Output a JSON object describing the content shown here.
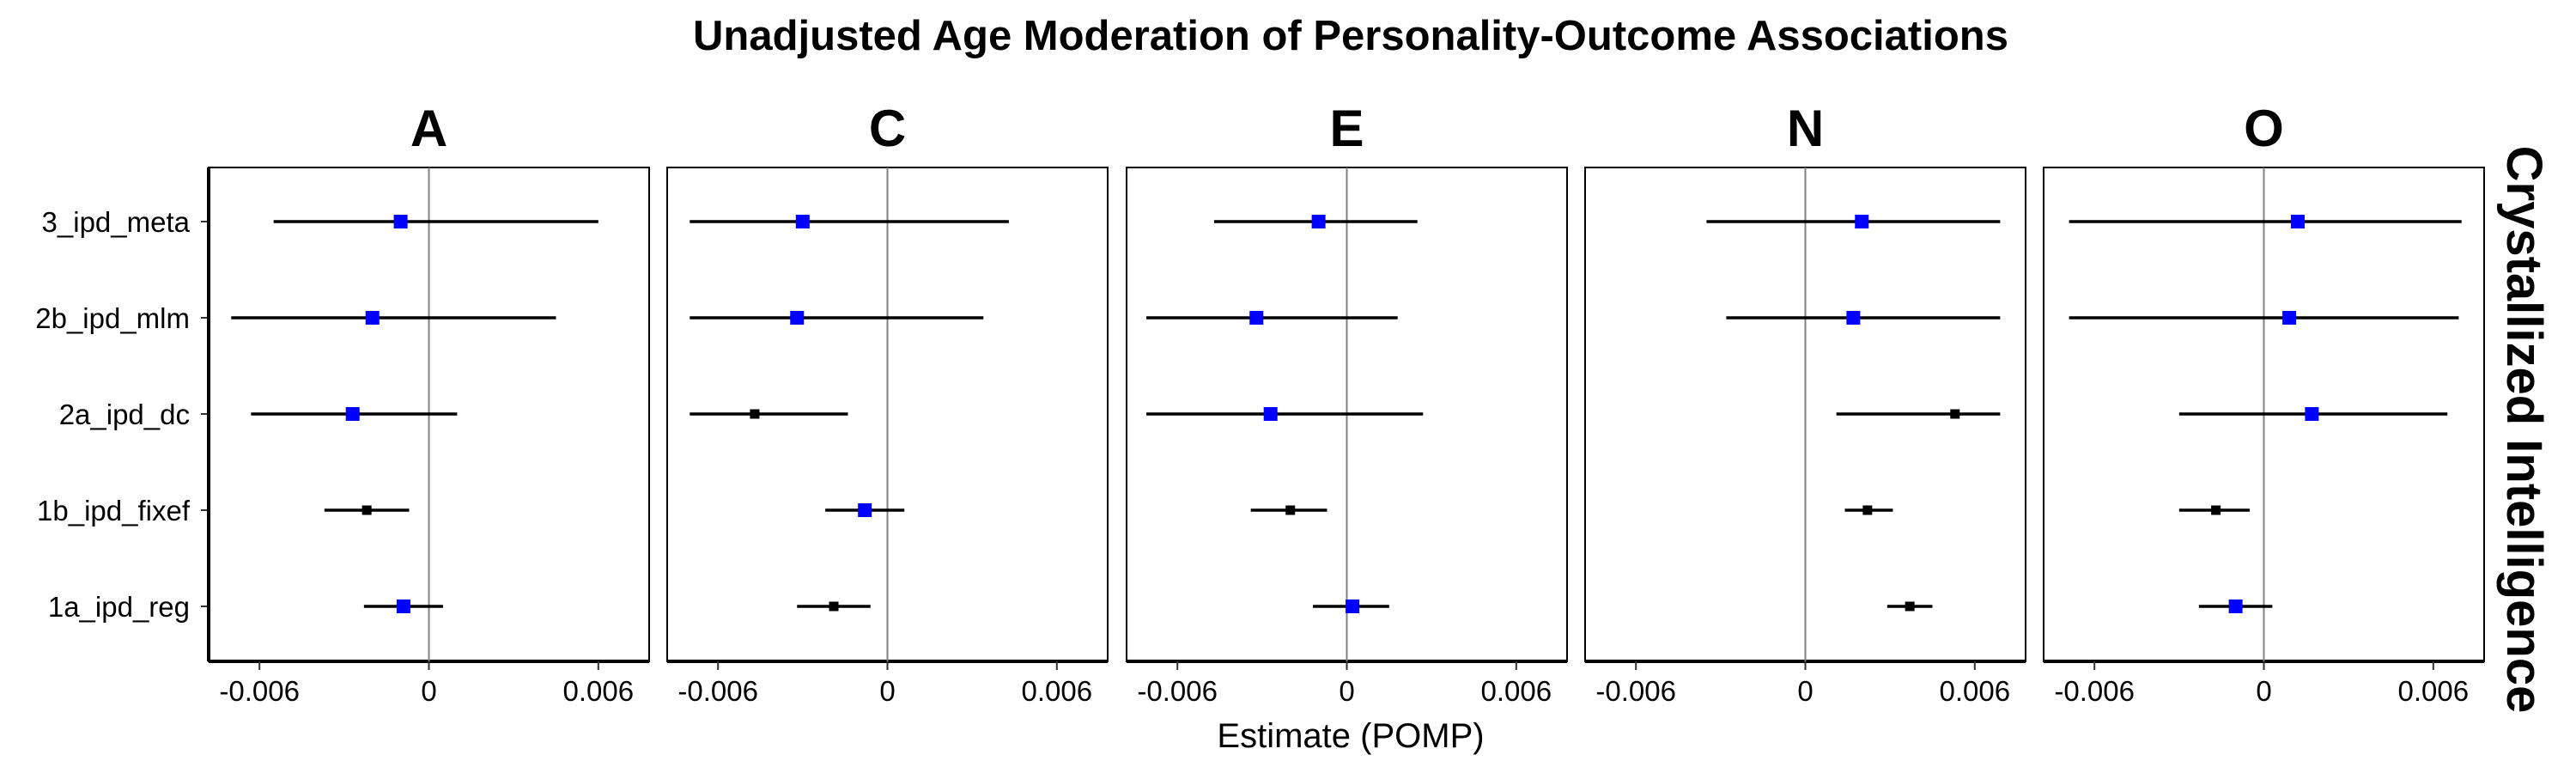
{
  "chart_data": {
    "type": "forest",
    "title": "Unadjusted Age Moderation of Personality-Outcome Associations",
    "xlabel": "Estimate (POMP)",
    "facet_row_label": "Crystallized Intelligence",
    "categories": [
      "3_ipd_meta",
      "2b_ipd_mlm",
      "2a_ipd_dc",
      "1b_ipd_fixef",
      "1a_ipd_reg"
    ],
    "xlim": [
      -0.0078,
      0.0078
    ],
    "xticks": [
      -0.006,
      0,
      0.006
    ],
    "xtick_labels": [
      "-0.006",
      "0",
      "0.006"
    ],
    "reference_line": 0,
    "colors": {
      "significant": "#0000ff",
      "not_significant": "#000000",
      "ref_line": "#808080",
      "error_bar": "#000000"
    },
    "panels": [
      {
        "name": "A",
        "rows": [
          {
            "model": "3_ipd_meta",
            "estimate": -0.001,
            "lower": -0.0055,
            "upper": 0.006,
            "significant": true
          },
          {
            "model": "2b_ipd_mlm",
            "estimate": -0.002,
            "lower": -0.007,
            "upper": 0.0045,
            "significant": true
          },
          {
            "model": "2a_ipd_dc",
            "estimate": -0.0027,
            "lower": -0.0063,
            "upper": 0.001,
            "significant": true
          },
          {
            "model": "1b_ipd_fixef",
            "estimate": -0.0022,
            "lower": -0.0037,
            "upper": -0.0007,
            "significant": false
          },
          {
            "model": "1a_ipd_reg",
            "estimate": -0.0009,
            "lower": -0.0023,
            "upper": 0.0005,
            "significant": true
          }
        ]
      },
      {
        "name": "C",
        "rows": [
          {
            "model": "3_ipd_meta",
            "estimate": -0.003,
            "lower": -0.007,
            "upper": 0.0043,
            "significant": true
          },
          {
            "model": "2b_ipd_mlm",
            "estimate": -0.0032,
            "lower": -0.007,
            "upper": 0.0034,
            "significant": true
          },
          {
            "model": "2a_ipd_dc",
            "estimate": -0.0047,
            "lower": -0.007,
            "upper": -0.0014,
            "significant": false
          },
          {
            "model": "1b_ipd_fixef",
            "estimate": -0.0008,
            "lower": -0.0022,
            "upper": 0.0006,
            "significant": true
          },
          {
            "model": "1a_ipd_reg",
            "estimate": -0.0019,
            "lower": -0.0032,
            "upper": -0.0006,
            "significant": false
          }
        ]
      },
      {
        "name": "E",
        "rows": [
          {
            "model": "3_ipd_meta",
            "estimate": -0.001,
            "lower": -0.0047,
            "upper": 0.0025,
            "significant": true
          },
          {
            "model": "2b_ipd_mlm",
            "estimate": -0.0032,
            "lower": -0.0071,
            "upper": 0.0018,
            "significant": true
          },
          {
            "model": "2a_ipd_dc",
            "estimate": -0.0027,
            "lower": -0.0071,
            "upper": 0.0027,
            "significant": true
          },
          {
            "model": "1b_ipd_fixef",
            "estimate": -0.002,
            "lower": -0.0034,
            "upper": -0.0007,
            "significant": false
          },
          {
            "model": "1a_ipd_reg",
            "estimate": 0.0002,
            "lower": -0.0012,
            "upper": 0.0015,
            "significant": true
          }
        ]
      },
      {
        "name": "N",
        "rows": [
          {
            "model": "3_ipd_meta",
            "estimate": 0.002,
            "lower": -0.0035,
            "upper": 0.0069,
            "significant": true
          },
          {
            "model": "2b_ipd_mlm",
            "estimate": 0.0017,
            "lower": -0.0028,
            "upper": 0.0069,
            "significant": true
          },
          {
            "model": "2a_ipd_dc",
            "estimate": 0.0053,
            "lower": 0.0011,
            "upper": 0.0069,
            "significant": false
          },
          {
            "model": "1b_ipd_fixef",
            "estimate": 0.0022,
            "lower": 0.0014,
            "upper": 0.0031,
            "significant": false
          },
          {
            "model": "1a_ipd_reg",
            "estimate": 0.0037,
            "lower": 0.0029,
            "upper": 0.0045,
            "significant": false
          }
        ]
      },
      {
        "name": "O",
        "rows": [
          {
            "model": "3_ipd_meta",
            "estimate": 0.0012,
            "lower": -0.0069,
            "upper": 0.007,
            "significant": true
          },
          {
            "model": "2b_ipd_mlm",
            "estimate": 0.0009,
            "lower": -0.0069,
            "upper": 0.0069,
            "significant": true
          },
          {
            "model": "2a_ipd_dc",
            "estimate": 0.0017,
            "lower": -0.003,
            "upper": 0.0065,
            "significant": true
          },
          {
            "model": "1b_ipd_fixef",
            "estimate": -0.0017,
            "lower": -0.003,
            "upper": -0.0005,
            "significant": false
          },
          {
            "model": "1a_ipd_reg",
            "estimate": -0.001,
            "lower": -0.0023,
            "upper": 0.0003,
            "significant": true
          }
        ]
      }
    ]
  }
}
